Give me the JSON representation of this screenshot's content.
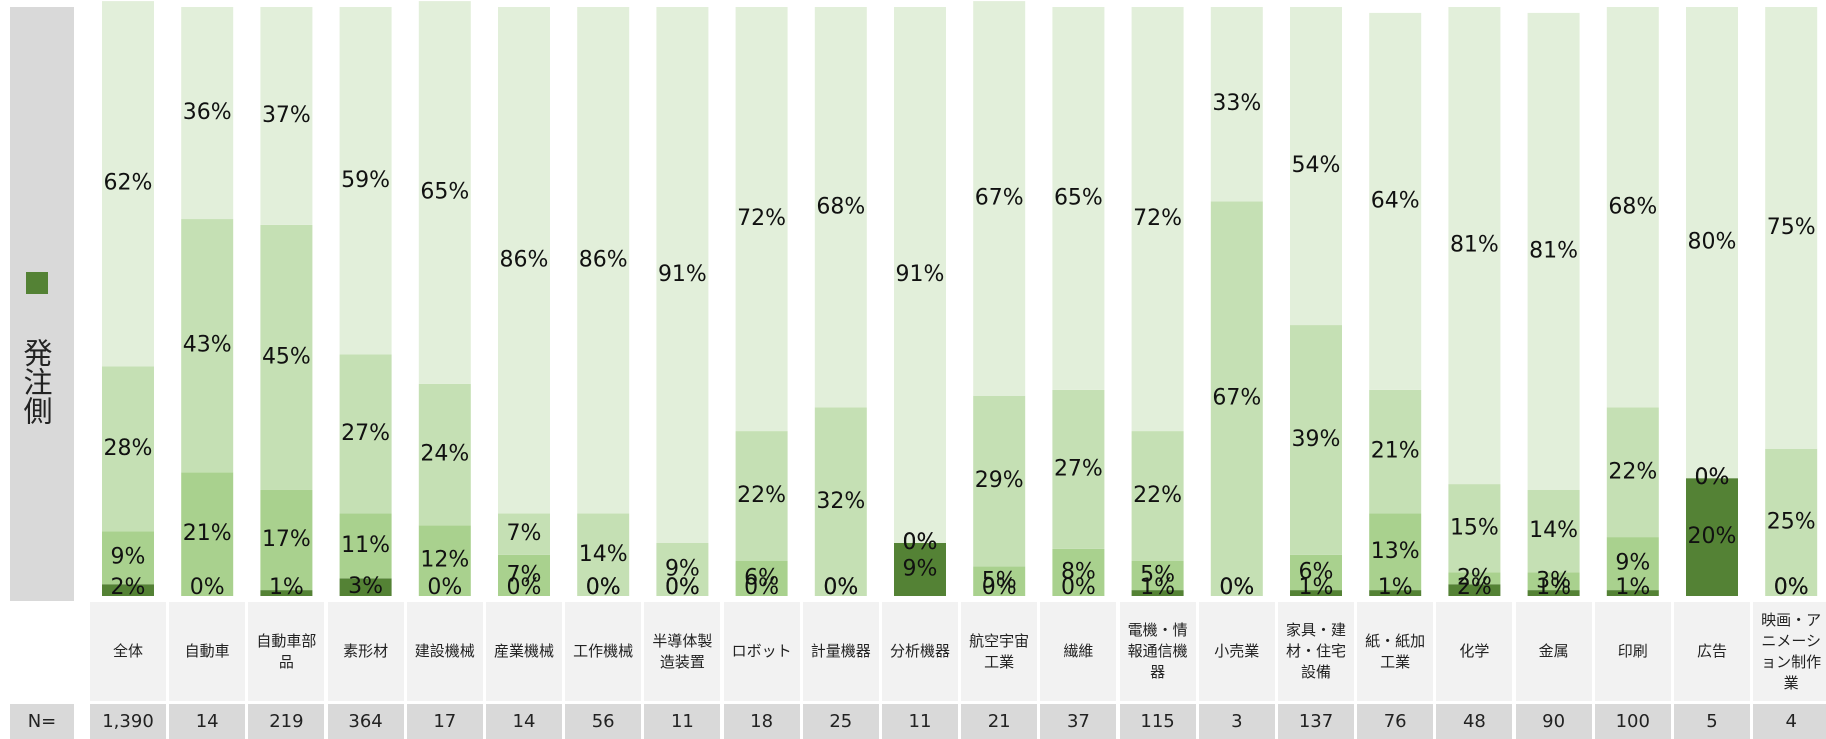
{
  "chart_data": {
    "type": "stacked_bar",
    "legend_label": "発注側",
    "n_label": "N=",
    "categories": [
      "全体",
      "自動車",
      "自動車部品",
      "素形材",
      "建設機械",
      "産業機械",
      "工作機械",
      "半導体製造装置",
      "ロボット",
      "計量機器",
      "分析機器",
      "航空宇宙工業",
      "繊維",
      "電機・情報通信機器",
      "小売業",
      "家具・建材・住宅設備",
      "紙・紙加工業",
      "化学",
      "金属",
      "印刷",
      "広告",
      "映画・アニメーション制作業"
    ],
    "n_values": [
      {
        "value": 1390,
        "label": "1,390"
      },
      14,
      219,
      364,
      17,
      14,
      56,
      11,
      18,
      25,
      11,
      21,
      37,
      115,
      3,
      137,
      76,
      48,
      90,
      100,
      5,
      4
    ],
    "ylim": [
      0,
      100
    ],
    "series": [
      {
        "color": "#548235",
        "values": [
          2,
          0,
          1,
          3,
          0,
          0,
          0,
          0,
          0,
          0,
          9,
          0,
          0,
          1,
          0,
          1,
          1,
          2,
          1,
          1,
          20,
          0
        ],
        "value_labels": [
          "2%",
          "0%",
          "1%",
          "3%",
          "0%",
          "0%",
          "0%",
          "0%",
          "0%",
          "0%",
          "9%",
          "0%",
          "0%",
          "1%",
          "0%",
          "1%",
          "1%",
          "2%",
          "1%",
          "1%",
          "20%",
          "0%"
        ]
      },
      {
        "color": "#a9d18e",
        "values": [
          9,
          21,
          17,
          11,
          12,
          7,
          0,
          0,
          6,
          0,
          0,
          5,
          8,
          5,
          0,
          6,
          13,
          2,
          3,
          9,
          0,
          0
        ],
        "value_labels": [
          "9%",
          "21%",
          "17%",
          "11%",
          "12%",
          "7%",
          "0%",
          "0%",
          "6%",
          "0%",
          "0%",
          "5%",
          "8%",
          "5%",
          "0%",
          "6%",
          "13%",
          "2%",
          "3%",
          "9%",
          "0%",
          "0%"
        ]
      },
      {
        "color": "#c5e0b4",
        "values": [
          28,
          43,
          45,
          27,
          24,
          7,
          14,
          9,
          22,
          32,
          0,
          29,
          27,
          22,
          67,
          39,
          21,
          15,
          14,
          22,
          0,
          25
        ],
        "value_labels": [
          "28%",
          "43%",
          "45%",
          "27%",
          "24%",
          "7%",
          "14%",
          "9%",
          "22%",
          "32%",
          "0%",
          "29%",
          "27%",
          "22%",
          "67%",
          "39%",
          "21%",
          "15%",
          "14%",
          "22%",
          "0%",
          "25%"
        ]
      },
      {
        "color": "#e2efda",
        "values": [
          62,
          36,
          37,
          59,
          65,
          86,
          86,
          91,
          72,
          68,
          91,
          67,
          65,
          72,
          33,
          54,
          64,
          81,
          81,
          68,
          80,
          75
        ],
        "value_labels": [
          "62%",
          "36%",
          "37%",
          "59%",
          "65%",
          "86%",
          "86%",
          "91%",
          "72%",
          "68%",
          "91%",
          "67%",
          "65%",
          "72%",
          "33%",
          "54%",
          "64%",
          "81%",
          "81%",
          "68%",
          "80%",
          "75%"
        ]
      }
    ]
  }
}
